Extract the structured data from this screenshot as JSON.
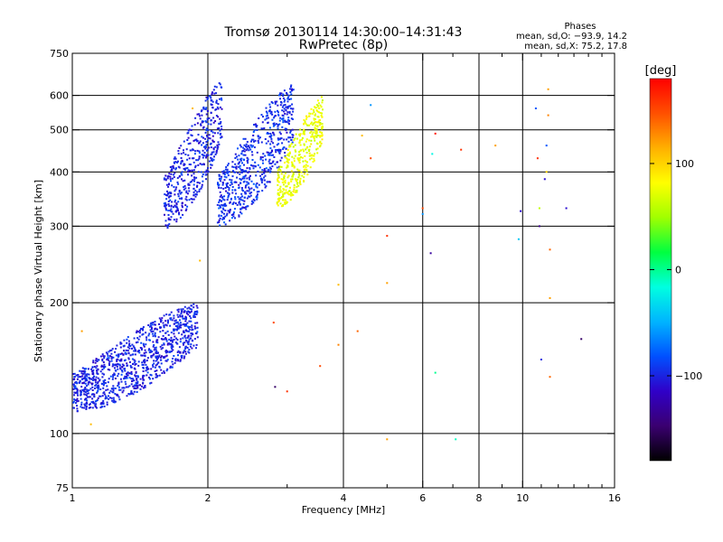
{
  "header": {
    "title_line1": "Tromsø 20130114 14:30:00–14:31:43",
    "title_line2": "RwPretec (8p)",
    "phases_title": "Phases",
    "phases_o": "mean, sd,O: −93.9, 14.2",
    "phases_x": "mean, sd,X:  75.2, 17.8"
  },
  "colorbar": {
    "label": "[deg]",
    "ticks": [
      {
        "value": 100,
        "label": "100"
      },
      {
        "value": 0,
        "label": "0"
      },
      {
        "value": -100,
        "label": "−100"
      }
    ],
    "range": [
      -180,
      180
    ],
    "colors": [
      "#000000",
      "#3a0070",
      "#3000c8",
      "#0050ff",
      "#00b4ff",
      "#00ffe0",
      "#00ff40",
      "#a0ff00",
      "#ffff00",
      "#ffb000",
      "#ff5000",
      "#ff0000"
    ]
  },
  "chart_data": {
    "type": "scatter",
    "title": "Tromsø 20130114 14:30:00–14:31:43",
    "subtitle": "RwPretec (8p)",
    "xlabel": "Frequency [MHz]",
    "ylabel": "Stationary phase Virtual Height [km]",
    "x_scale": "log",
    "y_scale": "log",
    "xlim": [
      1,
      16
    ],
    "ylim": [
      75,
      750
    ],
    "x_ticks": [
      1,
      2,
      4,
      6,
      8,
      10,
      16
    ],
    "x_tick_labels": [
      "1",
      "2",
      "4",
      "6",
      "8",
      "10",
      "16"
    ],
    "x_minor_ticks": [
      3,
      5,
      7,
      9,
      11,
      12,
      13,
      14,
      15
    ],
    "y_ticks": [
      75,
      100,
      200,
      300,
      400,
      500,
      600,
      750
    ],
    "y_tick_labels": [
      "75",
      "100",
      "200",
      "300",
      "400",
      "500",
      "600",
      "750"
    ],
    "x_grid_lines": [
      2,
      4,
      6,
      8,
      10
    ],
    "y_grid_lines": [
      100,
      200,
      300,
      400,
      500,
      600
    ],
    "color_axis": "phase [deg]",
    "clusters": [
      {
        "mode": "O",
        "f_range": [
          1.0,
          1.9
        ],
        "h_range": [
          112,
          200
        ],
        "phase_mean": -100
      },
      {
        "mode": "O",
        "f_range": [
          1.6,
          2.15
        ],
        "h_range": [
          295,
          650
        ],
        "phase_mean": -100
      },
      {
        "mode": "O",
        "f_range": [
          2.1,
          3.1
        ],
        "h_range": [
          300,
          640
        ],
        "phase_mean": -95
      },
      {
        "mode": "X",
        "f_range": [
          2.85,
          3.6
        ],
        "h_range": [
          330,
          600
        ],
        "phase_mean": 75
      }
    ],
    "sparse_points": [
      {
        "x": 1.05,
        "y": 172,
        "phase": 120
      },
      {
        "x": 1.1,
        "y": 105,
        "phase": 110
      },
      {
        "x": 1.85,
        "y": 560,
        "phase": 110
      },
      {
        "x": 1.92,
        "y": 250,
        "phase": 110
      },
      {
        "x": 2.8,
        "y": 180,
        "phase": 150
      },
      {
        "x": 2.82,
        "y": 128,
        "phase": -150
      },
      {
        "x": 3.0,
        "y": 125,
        "phase": 160
      },
      {
        "x": 3.55,
        "y": 143,
        "phase": 150
      },
      {
        "x": 3.9,
        "y": 160,
        "phase": 130
      },
      {
        "x": 4.3,
        "y": 172,
        "phase": 140
      },
      {
        "x": 4.6,
        "y": 570,
        "phase": -60
      },
      {
        "x": 4.6,
        "y": 430,
        "phase": 150
      },
      {
        "x": 4.4,
        "y": 485,
        "phase": 110
      },
      {
        "x": 3.9,
        "y": 220,
        "phase": 110
      },
      {
        "x": 5.0,
        "y": 285,
        "phase": 160
      },
      {
        "x": 5.0,
        "y": 222,
        "phase": 120
      },
      {
        "x": 5.0,
        "y": 97,
        "phase": 120
      },
      {
        "x": 6.0,
        "y": 330,
        "phase": 150
      },
      {
        "x": 6.0,
        "y": 320,
        "phase": -60
      },
      {
        "x": 6.25,
        "y": 260,
        "phase": -130
      },
      {
        "x": 6.3,
        "y": 440,
        "phase": -20
      },
      {
        "x": 6.4,
        "y": 490,
        "phase": 170
      },
      {
        "x": 6.4,
        "y": 138,
        "phase": 0
      },
      {
        "x": 7.1,
        "y": 97,
        "phase": -10
      },
      {
        "x": 7.3,
        "y": 450,
        "phase": 160
      },
      {
        "x": 8.7,
        "y": 460,
        "phase": 120
      },
      {
        "x": 9.9,
        "y": 325,
        "phase": -110
      },
      {
        "x": 9.8,
        "y": 280,
        "phase": -40
      },
      {
        "x": 10.7,
        "y": 560,
        "phase": -80
      },
      {
        "x": 10.8,
        "y": 430,
        "phase": 160
      },
      {
        "x": 10.9,
        "y": 300,
        "phase": -140
      },
      {
        "x": 10.9,
        "y": 330,
        "phase": 60
      },
      {
        "x": 11.0,
        "y": 148,
        "phase": -100
      },
      {
        "x": 11.2,
        "y": 385,
        "phase": -110
      },
      {
        "x": 11.3,
        "y": 400,
        "phase": 100
      },
      {
        "x": 11.3,
        "y": 460,
        "phase": -80
      },
      {
        "x": 11.4,
        "y": 540,
        "phase": 130
      },
      {
        "x": 11.4,
        "y": 620,
        "phase": 120
      },
      {
        "x": 11.5,
        "y": 265,
        "phase": 140
      },
      {
        "x": 11.5,
        "y": 205,
        "phase": 120
      },
      {
        "x": 11.5,
        "y": 135,
        "phase": 140
      },
      {
        "x": 12.5,
        "y": 330,
        "phase": -110
      },
      {
        "x": 13.5,
        "y": 165,
        "phase": -150
      }
    ]
  }
}
